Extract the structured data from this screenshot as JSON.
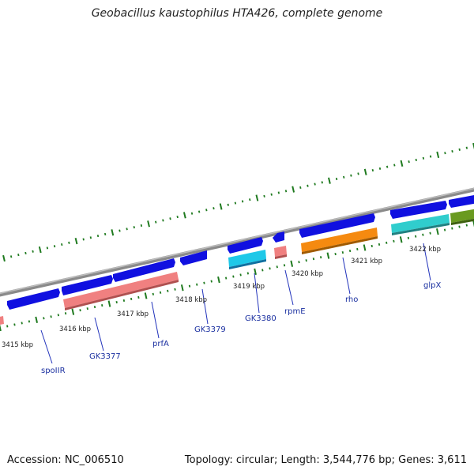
{
  "title": "Geobacillus kaustophilus HTA426, complete genome",
  "footer": {
    "accession": "Accession: NC_006510",
    "summary": "Topology: circular; Length: 3,544,776 bp; Genes: 3,611"
  },
  "colors": {
    "backbone": "#8a8a8a",
    "ticks": "#1f7a1f",
    "cds_blue": "#1010e0",
    "rrna_pink": "#f08080",
    "cyan": "#1ec8e8",
    "orange": "#f58a10",
    "teal": "#30cdcd",
    "olive": "#6a9a20",
    "label_text": "#1a2fa0"
  },
  "scale_labels": [
    "3415 kbp",
    "3416 kbp",
    "3417 kbp",
    "3418 kbp",
    "3419 kbp",
    "3420 kbp",
    "3421 kbp",
    "3422 kbp"
  ],
  "gene_labels": [
    "spoIIR",
    "GK3377",
    "prfA",
    "GK3379",
    "GK3380",
    "rpmE",
    "rho",
    "glpX"
  ]
}
